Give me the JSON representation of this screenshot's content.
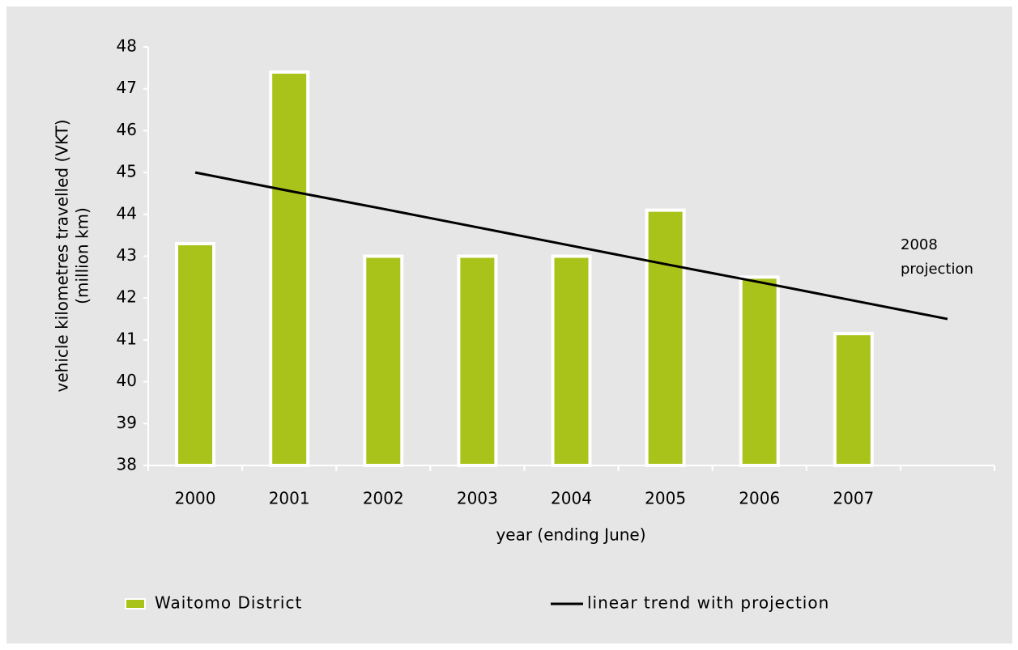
{
  "chart_data": {
    "type": "bar",
    "categories": [
      "2000",
      "2001",
      "2002",
      "2003",
      "2004",
      "2005",
      "2006",
      "2007",
      null
    ],
    "series": [
      {
        "name": "Waitomo District",
        "type": "bar",
        "color": "#aac31b",
        "values": [
          43.3,
          47.4,
          43.0,
          43.0,
          43.0,
          44.1,
          42.5,
          41.15,
          null
        ]
      },
      {
        "name": "linear trend with projection",
        "type": "line",
        "color": "#000000",
        "values": [
          45.0,
          44.56,
          44.13,
          43.69,
          43.25,
          42.81,
          42.38,
          41.94,
          41.5
        ]
      }
    ],
    "ylim": [
      38,
      48
    ],
    "yticks": [
      38,
      39,
      40,
      41,
      42,
      43,
      44,
      45,
      46,
      47,
      48
    ],
    "x_label": "year (ending June)",
    "y_label": [
      "vehicle kilometres travelled (VKT)",
      "(million km)"
    ],
    "annotation": [
      "2008",
      "projection"
    ],
    "legend": "bottom",
    "grid": false
  }
}
